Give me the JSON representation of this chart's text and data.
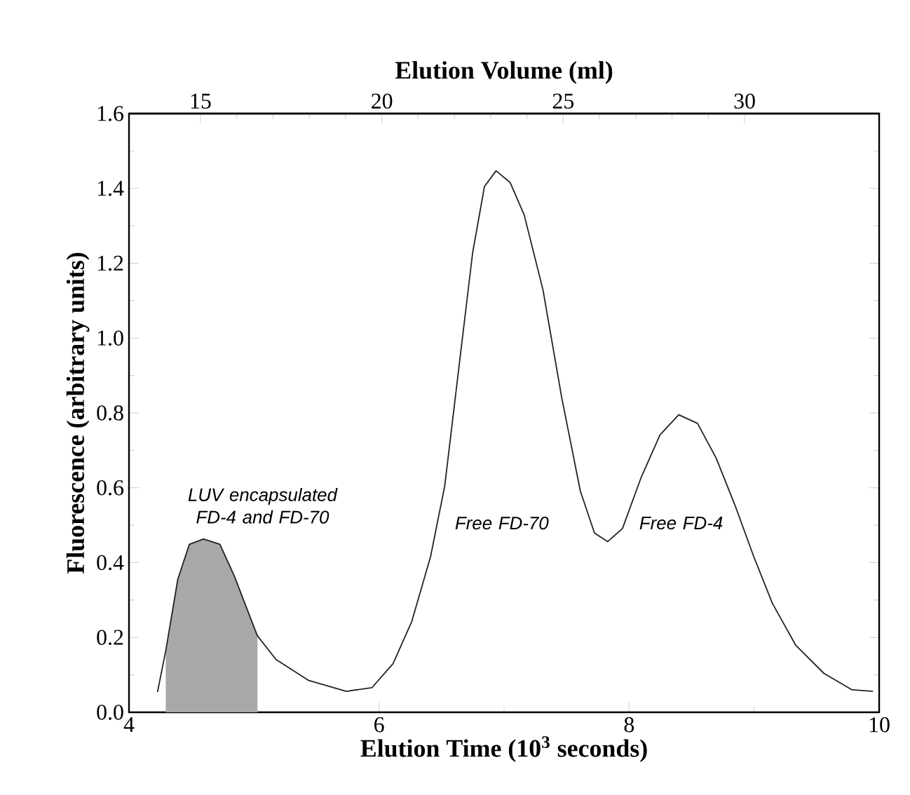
{
  "chart_data": {
    "type": "line",
    "xlabel": "Elution Time (10$^{3}$ seconds)",
    "ylabel": "Fluorescence (arbitrary units)",
    "x2label": "Elution Volume (ml)",
    "xlim": [
      4,
      10
    ],
    "xticks": [
      4,
      6,
      8,
      10
    ],
    "x2lim": [
      13.03,
      33.71
    ],
    "x2ticks": [
      15,
      20,
      25,
      30
    ],
    "ylim": [
      0,
      1.6
    ],
    "yticks": [
      {
        "value": 0,
        "label": "0.0"
      },
      {
        "value": 0.2,
        "label": "0.2"
      },
      {
        "value": 0.4,
        "label": "0.4"
      },
      {
        "value": 0.6,
        "label": "0.6"
      },
      {
        "value": 0.8,
        "label": "0.8"
      },
      {
        "value": 1.0,
        "label": "1.0"
      },
      {
        "value": 1.2,
        "label": "1.2"
      },
      {
        "value": 1.4,
        "label": "1.4"
      },
      {
        "value": 1.6,
        "label": "1.6"
      }
    ],
    "series": [
      {
        "color": "#222222",
        "x": [
          4.228,
          4.296,
          4.39,
          4.483,
          4.596,
          4.727,
          4.84,
          5.026,
          5.176,
          5.438,
          5.738,
          5.944,
          6.112,
          6.262,
          6.412,
          6.525,
          6.637,
          6.749,
          6.843,
          6.936,
          7.048,
          7.161,
          7.311,
          7.461,
          7.61,
          7.723,
          7.828,
          7.947,
          8.098,
          8.247,
          8.397,
          8.547,
          8.697,
          8.846,
          8.997,
          9.146,
          9.333,
          9.558,
          9.783,
          9.951
        ],
        "values": [
          0.054,
          0.168,
          0.355,
          0.449,
          0.463,
          0.449,
          0.366,
          0.205,
          0.141,
          0.085,
          0.056,
          0.066,
          0.13,
          0.243,
          0.416,
          0.604,
          0.917,
          1.229,
          1.405,
          1.447,
          1.416,
          1.329,
          1.129,
          0.841,
          0.591,
          0.479,
          0.456,
          0.491,
          0.629,
          0.741,
          0.795,
          0.772,
          0.679,
          0.554,
          0.416,
          0.291,
          0.179,
          0.104,
          0.06,
          0.056
        ]
      },
      {
        "type": "area",
        "color": "#a8a8a8",
        "x": [
          4.296,
          4.39,
          4.483,
          4.596,
          4.727,
          4.84,
          5.026
        ],
        "values": [
          0.168,
          0.355,
          0.449,
          0.463,
          0.449,
          0.366,
          0.205
        ]
      }
    ],
    "annotations": [
      "LUV encapsulated FD-4 and FD-70",
      "Free FD-70",
      "Free FD-4"
    ]
  }
}
